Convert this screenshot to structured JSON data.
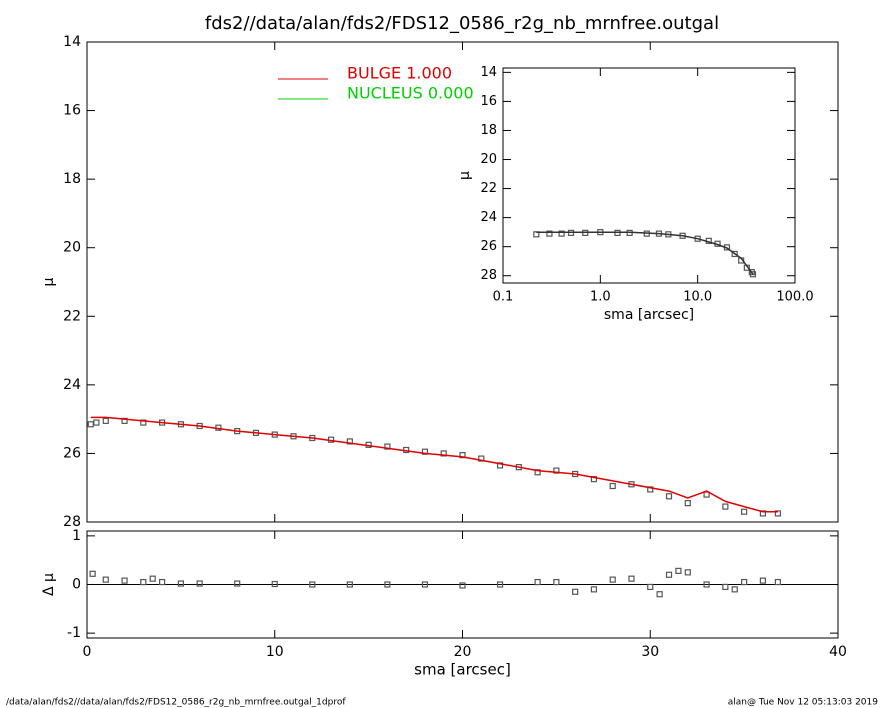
{
  "title": "fds2//data/alan/fds2/FDS12_0586_r2g_nb_mrnfree.outgal",
  "footer_left": "/data/alan/fds2//data/alan/fds2/FDS12_0586_r2g_nb_mrnfree.outgal_1dprof",
  "footer_right": "alan@  Tue Nov 12 05:13:03 2019",
  "chart_data": [
    {
      "type": "scatter",
      "ylabel": "μ",
      "xlim": [
        0,
        40
      ],
      "xticks": [
        0,
        10,
        20,
        30,
        40
      ],
      "ylim": [
        14,
        28
      ],
      "invert_y": true,
      "yticks": [
        14,
        16,
        18,
        20,
        22,
        24,
        26,
        28
      ],
      "legend": [
        {
          "name": "BULGE  1.000",
          "color": "#e00000"
        },
        {
          "name": "NUCLEUS  0.000",
          "color": "#00d000"
        }
      ],
      "series": [
        {
          "kind": "points",
          "color": "#555555",
          "x": [
            0.2,
            0.5,
            1,
            2,
            3,
            4,
            5,
            6,
            7,
            8,
            9,
            10,
            11,
            12,
            13,
            14,
            15,
            16,
            17,
            18,
            19,
            20,
            21,
            22,
            23,
            24,
            25,
            26,
            27,
            28,
            29,
            30,
            31,
            32,
            33,
            34,
            35,
            36,
            36.8
          ],
          "values": [
            25.15,
            25.1,
            25.05,
            25.05,
            25.1,
            25.1,
            25.15,
            25.2,
            25.25,
            25.35,
            25.4,
            25.45,
            25.5,
            25.55,
            25.6,
            25.65,
            25.75,
            25.8,
            25.9,
            25.95,
            26.0,
            26.05,
            26.15,
            26.35,
            26.4,
            26.55,
            26.5,
            26.6,
            26.75,
            26.95,
            26.9,
            27.05,
            27.25,
            27.45,
            27.2,
            27.55,
            27.7,
            27.75,
            27.75
          ]
        },
        {
          "kind": "line",
          "color": "#e00000",
          "x": [
            0.2,
            1,
            2,
            4,
            6,
            8,
            10,
            12,
            14,
            16,
            18,
            20,
            22,
            24,
            26,
            28,
            30,
            31,
            32,
            33,
            34,
            35,
            36,
            36.8
          ],
          "values": [
            24.95,
            24.95,
            25.0,
            25.1,
            25.2,
            25.35,
            25.45,
            25.55,
            25.7,
            25.85,
            26.0,
            26.1,
            26.3,
            26.5,
            26.6,
            26.8,
            27.0,
            27.1,
            27.3,
            27.1,
            27.4,
            27.55,
            27.7,
            27.7
          ]
        }
      ]
    },
    {
      "type": "scatter",
      "xlabel": "sma [arcsec]",
      "ylabel": "Δ μ",
      "xlim": [
        0,
        40
      ],
      "xticks": [
        0,
        10,
        20,
        30,
        40
      ],
      "ylim": [
        -1.1,
        1.1
      ],
      "yticks": [
        -1,
        0,
        1
      ],
      "reference_line": 0,
      "series": [
        {
          "kind": "points",
          "color": "#555555",
          "x": [
            0.3,
            1,
            2,
            3,
            3.5,
            4,
            5,
            6,
            8,
            10,
            12,
            14,
            16,
            18,
            20,
            22,
            24,
            25,
            26,
            27,
            28,
            29,
            30,
            30.5,
            31,
            31.5,
            32,
            33,
            34,
            34.5,
            35,
            36,
            36.8
          ],
          "values": [
            0.22,
            0.1,
            0.08,
            0.05,
            0.12,
            0.05,
            0.02,
            0.02,
            0.02,
            0.01,
            0.0,
            0.0,
            0.0,
            0.0,
            -0.02,
            0.0,
            0.05,
            0.05,
            -0.15,
            -0.1,
            0.1,
            0.12,
            -0.05,
            -0.2,
            0.2,
            0.28,
            0.25,
            0.0,
            -0.05,
            -0.1,
            0.05,
            0.08,
            0.05
          ]
        }
      ]
    },
    {
      "type": "scatter",
      "xlabel": "sma [arcsec]",
      "ylabel": "μ",
      "xlog": true,
      "xlim": [
        0.1,
        100
      ],
      "xticks": [
        0.1,
        {
          "value": 1,
          "label": "1.0"
        },
        {
          "value": 10,
          "label": "10.0"
        },
        {
          "value": 100,
          "label": "100.0"
        }
      ],
      "ylim": [
        13.7,
        28.5
      ],
      "invert_y": true,
      "yticks": [
        14,
        16,
        18,
        20,
        22,
        24,
        26,
        28
      ],
      "series": [
        {
          "kind": "points",
          "color": "#555555",
          "x": [
            0.22,
            0.3,
            0.4,
            0.5,
            0.7,
            1,
            1.5,
            2,
            3,
            4,
            5,
            7,
            10,
            13,
            16,
            20,
            24,
            28,
            32,
            36,
            37
          ],
          "values": [
            25.15,
            25.1,
            25.1,
            25.05,
            25.05,
            25.0,
            25.05,
            25.05,
            25.1,
            25.1,
            25.15,
            25.25,
            25.45,
            25.6,
            25.8,
            26.05,
            26.5,
            26.95,
            27.45,
            27.75,
            27.9
          ]
        },
        {
          "kind": "line",
          "color": "#333333",
          "x": [
            0.22,
            0.5,
            1,
            2,
            4,
            7,
            10,
            16,
            20,
            28,
            37
          ],
          "values": [
            25.0,
            25.0,
            25.0,
            25.0,
            25.1,
            25.25,
            25.45,
            25.85,
            26.1,
            26.8,
            27.9
          ]
        }
      ]
    }
  ]
}
